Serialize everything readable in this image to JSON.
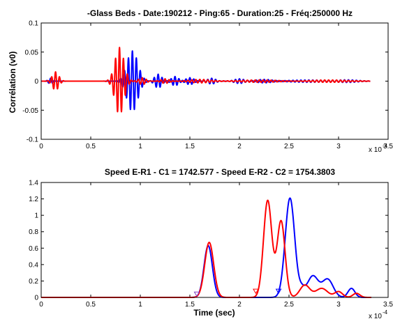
{
  "chart_data": [
    {
      "type": "line",
      "title": "-Glass Beds - Date:190212 - Ping:65 - Duration:25 - Fréq:250000 Hz",
      "xlabel": "",
      "ylabel": "Corrélation  (v0)",
      "xlim": [
        0,
        0.00035
      ],
      "ylim": [
        -0.1,
        0.1
      ],
      "x_scale_label": "x 10",
      "x_scale_exp": "-4",
      "xticks": [
        "0",
        "0.5",
        "1",
        "1.5",
        "2",
        "2.5",
        "3",
        "3.5"
      ],
      "yticks": [
        "-0.1",
        "-0.05",
        "0",
        "0.05",
        "0.1"
      ],
      "grid": false,
      "colors": {
        "blue": "#0000ff",
        "red": "#ff0000"
      },
      "series": [
        {
          "color": "blue",
          "packets": [
            {
              "center": 9.5e-06,
              "width": 2.2e-06,
              "amp": 0.005
            },
            {
              "center": 9.2e-05,
              "width": 5.5e-06,
              "amp": 0.052
            },
            {
              "center": 2.75e-06,
              "width": 2.2e-06,
              "amp": 0.0
            },
            {
              "center": 0.000118,
              "width": 3.5e-06,
              "amp": 0.012
            },
            {
              "center": 0.000135,
              "width": 3.5e-06,
              "amp": 0.008
            },
            {
              "center": 0.00015,
              "width": 4e-06,
              "amp": 0.006
            },
            {
              "center": 0.000172,
              "width": 4e-06,
              "amp": 0.005
            },
            {
              "center": 0.0002,
              "width": 5e-06,
              "amp": 0.004
            },
            {
              "center": 0.000225,
              "width": 8e-06,
              "amp": 0.003
            },
            {
              "center": 0.00027,
              "width": 2e-05,
              "amp": 0.002
            },
            {
              "center": 0.00031,
              "width": 1e-05,
              "amp": 0.002
            }
          ]
        },
        {
          "color": "red",
          "packets": [
            {
              "center": 1.45e-05,
              "width": 3.2e-06,
              "amp": 0.016
            },
            {
              "center": 7.9e-05,
              "width": 4.5e-06,
              "amp": 0.058
            },
            {
              "center": 0.000102,
              "width": 3.5e-06,
              "amp": 0.006
            },
            {
              "center": 0.000125,
              "width": 4e-06,
              "amp": 0.004
            },
            {
              "center": 0.00016,
              "width": 1e-05,
              "amp": 0.003
            },
            {
              "center": 0.00022,
              "width": 2e-05,
              "amp": 0.002
            },
            {
              "center": 0.00029,
              "width": 2e-05,
              "amp": 0.002
            }
          ]
        }
      ]
    },
    {
      "type": "line",
      "title": "Speed E-R1 - C1 = 1742.577  -  Speed E-R2 - C2 = 1754.3803",
      "xlabel": "Time (sec)",
      "ylabel": "",
      "xlim": [
        0,
        0.00035
      ],
      "ylim": [
        0,
        1.4
      ],
      "x_scale_label": "x 10",
      "x_scale_exp": "-4",
      "xticks": [
        "0",
        "0.5",
        "1",
        "1.5",
        "2",
        "2.5",
        "3",
        "3.5"
      ],
      "yticks": [
        "0",
        "0.2",
        "0.4",
        "0.6",
        "0.8",
        "1",
        "1.2",
        "1.4"
      ],
      "grid": false,
      "series": [
        {
          "color": "blue",
          "peaks": [
            {
              "center": 0.0001685,
              "width": 4.2e-06,
              "height": 0.63
            },
            {
              "center": 0.000251,
              "width": 4.8e-06,
              "height": 1.21
            },
            {
              "center": 0.000274,
              "width": 5.5e-06,
              "height": 0.26
            },
            {
              "center": 0.000289,
              "width": 5.5e-06,
              "height": 0.22
            },
            {
              "center": 0.000263,
              "width": 3e-06,
              "height": 0.08
            },
            {
              "center": 0.000313,
              "width": 3.5e-06,
              "height": 0.11
            }
          ],
          "markers": [
            {
              "x": 0.0002395,
              "y": 0.075
            }
          ]
        },
        {
          "color": "red",
          "peaks": [
            {
              "center": 0.0001695,
              "width": 4.5e-06,
              "height": 0.67
            },
            {
              "center": 0.0002285,
              "width": 4.2e-06,
              "height": 1.18
            },
            {
              "center": 0.000242,
              "width": 4e-06,
              "height": 0.93
            },
            {
              "center": 0.000266,
              "width": 5e-06,
              "height": 0.15
            },
            {
              "center": 0.000283,
              "width": 6e-06,
              "height": 0.11
            },
            {
              "center": 0.0003,
              "width": 4e-06,
              "height": 0.07
            },
            {
              "center": 0.000318,
              "width": 3.5e-06,
              "height": 0.05
            }
          ],
          "markers": [
            {
              "x": 0.0002165,
              "y": 0.075
            }
          ]
        },
        {
          "color": "purple",
          "markers": [
            {
              "x": 0.000157,
              "y": 0.04
            }
          ]
        }
      ]
    }
  ]
}
